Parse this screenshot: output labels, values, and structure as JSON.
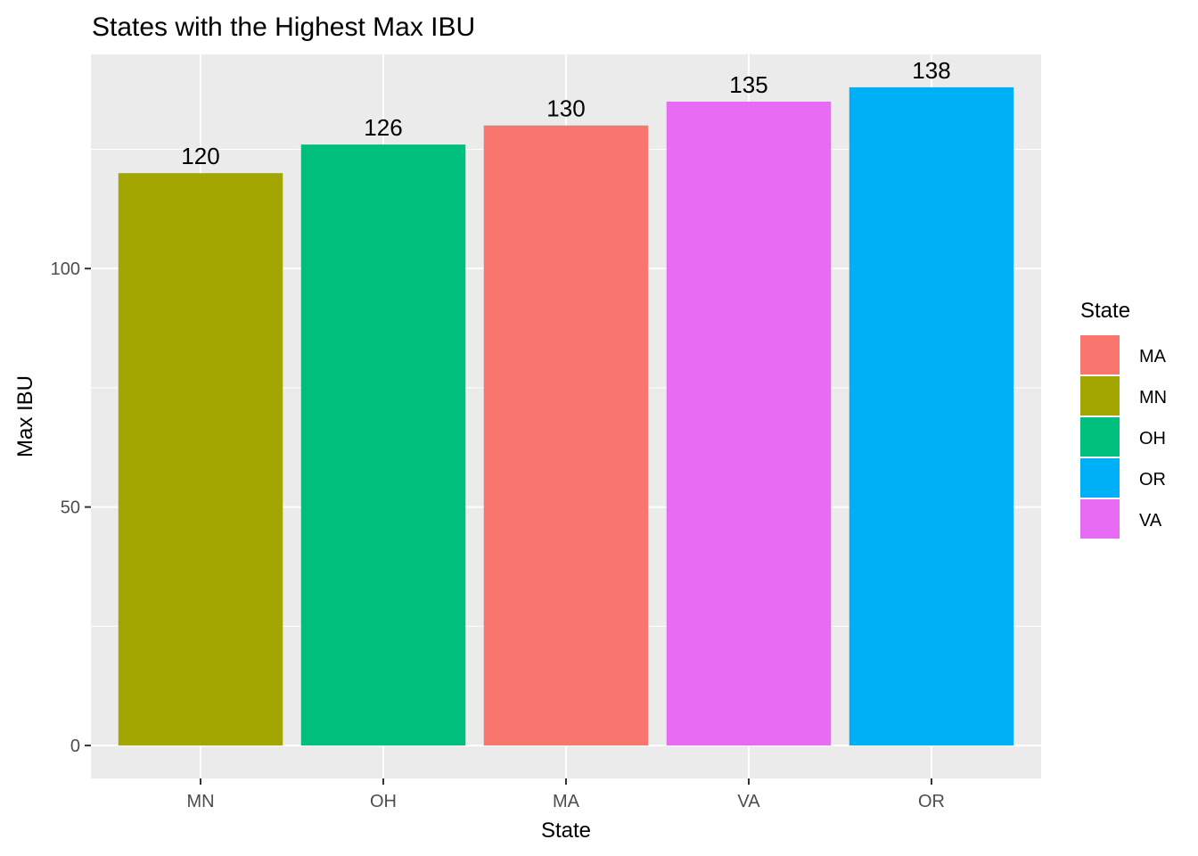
{
  "chart_data": {
    "type": "bar",
    "title": "States with the Highest Max IBU",
    "xlabel": "State",
    "ylabel": "Max IBU",
    "categories": [
      "MN",
      "OH",
      "MA",
      "VA",
      "OR"
    ],
    "values": [
      120,
      126,
      130,
      135,
      138
    ],
    "data_labels": [
      "120",
      "126",
      "130",
      "135",
      "138"
    ],
    "ylim": [
      -6.9,
      144.9
    ],
    "yticks": [
      0,
      50,
      100
    ],
    "ytick_labels": [
      "0",
      "50",
      "100"
    ],
    "grid": true,
    "legend": {
      "title": "State",
      "placement": "right",
      "items": [
        {
          "label": "MA",
          "color": "#F8766D"
        },
        {
          "label": "MN",
          "color": "#A3A500"
        },
        {
          "label": "OH",
          "color": "#00BF7D"
        },
        {
          "label": "OR",
          "color": "#00B0F6"
        },
        {
          "label": "VA",
          "color": "#E76BF3"
        }
      ]
    },
    "colors": {
      "MN": "#A3A500",
      "OH": "#00BF7D",
      "MA": "#F8766D",
      "VA": "#E76BF3",
      "OR": "#00B0F6"
    },
    "panel_background": "#EBEBEB",
    "gridline_color": "#FFFFFF"
  }
}
